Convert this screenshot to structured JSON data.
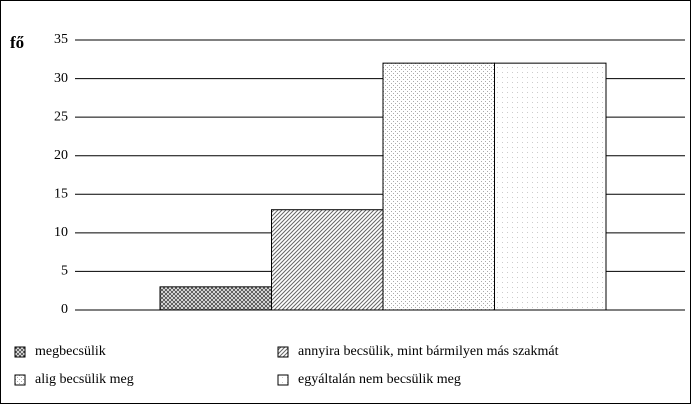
{
  "chart_data": {
    "type": "bar",
    "ylabel": "fő",
    "series": [
      {
        "name": "megbecsülik",
        "color": "#555555",
        "values": [
          3
        ]
      },
      {
        "name": "annyira becsülik, mint bármilyen más szakmát",
        "color": "#666666",
        "values": [
          13
        ]
      },
      {
        "name": "alig becsülik meg",
        "color": "#aaaaaa",
        "values": [
          32
        ]
      },
      {
        "name": "egyáltalán nem becsülik meg",
        "color": "#cccccc",
        "values": [
          32
        ]
      }
    ],
    "ylim": [
      0,
      35
    ],
    "yticks": [
      0,
      5,
      10,
      15,
      20,
      25,
      30,
      35
    ],
    "grid": true,
    "legend": "bottom"
  }
}
